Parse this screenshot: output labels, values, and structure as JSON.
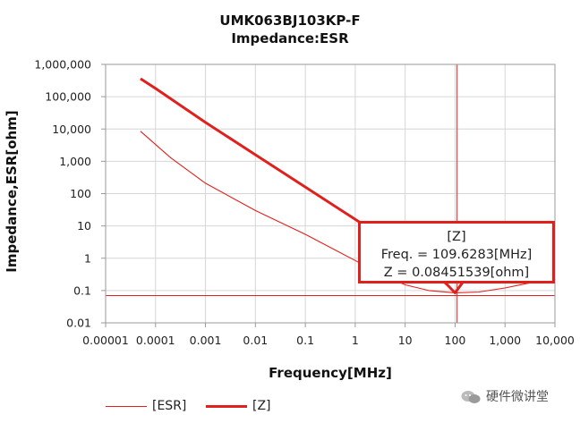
{
  "chart_data": {
    "type": "line",
    "title": "UMK063BJ103KP-F",
    "subtitle": "Impedance:ESR",
    "xlabel": "Frequency[MHz]",
    "ylabel": "Impedance,ESR[ohm]",
    "x_scale": "log",
    "y_scale": "log",
    "xlim": [
      1e-05,
      10000
    ],
    "ylim": [
      0.01,
      1000000
    ],
    "x_ticks": [
      1e-05,
      0.0001,
      0.001,
      0.01,
      0.1,
      1,
      10,
      100,
      1000,
      10000
    ],
    "x_tick_labels": [
      "0.00001",
      "0.0001",
      "0.001",
      "0.01",
      "0.1",
      "1",
      "10",
      "100",
      "1,000",
      "10,000"
    ],
    "y_ticks": [
      0.01,
      0.1,
      1,
      10,
      100,
      1000,
      10000,
      100000,
      1000000
    ],
    "y_tick_labels": [
      "0.01",
      "0.1",
      "1",
      "10",
      "100",
      "1,000",
      "10,000",
      "100,000",
      "1,000,000"
    ],
    "grid": true,
    "legend_position": "bottom",
    "series": [
      {
        "name": "[ESR]",
        "color": "#e0201c",
        "line": "thin",
        "points": [
          [
            5e-05,
            8500
          ],
          [
            0.0002,
            1300
          ],
          [
            0.001,
            210
          ],
          [
            0.01,
            30
          ],
          [
            0.1,
            5.5
          ],
          [
            1,
            0.85
          ],
          [
            3,
            0.35
          ],
          [
            10,
            0.15
          ],
          [
            30,
            0.1
          ],
          [
            100,
            0.085
          ],
          [
            300,
            0.09
          ],
          [
            1000,
            0.12
          ],
          [
            3000,
            0.17
          ]
        ]
      },
      {
        "name": "[Z]",
        "color": "#e0201c",
        "line": "thick",
        "points": [
          [
            5e-05,
            360000
          ],
          [
            0.0001,
            180000
          ],
          [
            0.001,
            16000
          ],
          [
            0.01,
            1600
          ],
          [
            0.1,
            160
          ],
          [
            1,
            16
          ],
          [
            10,
            1.6
          ],
          [
            30,
            0.5
          ],
          [
            70,
            0.15
          ],
          [
            100,
            0.0845
          ],
          [
            150,
            0.2
          ],
          [
            300,
            0.55
          ],
          [
            1000,
            1.9
          ],
          [
            3000,
            5.8
          ]
        ]
      }
    ],
    "reference_lines": [
      {
        "orientation": "vertical",
        "x": 109.6283
      },
      {
        "orientation": "horizontal",
        "y": 0.07
      }
    ],
    "annotation": {
      "line1": "[Z]",
      "line2": "Freq. = 109.6283[MHz]",
      "line3": "Z = 0.08451539[ohm]",
      "x": 109.6283,
      "y": 0.08451539
    }
  },
  "watermark": {
    "text": "硬件微讲堂",
    "icon": "wechat-icon"
  }
}
